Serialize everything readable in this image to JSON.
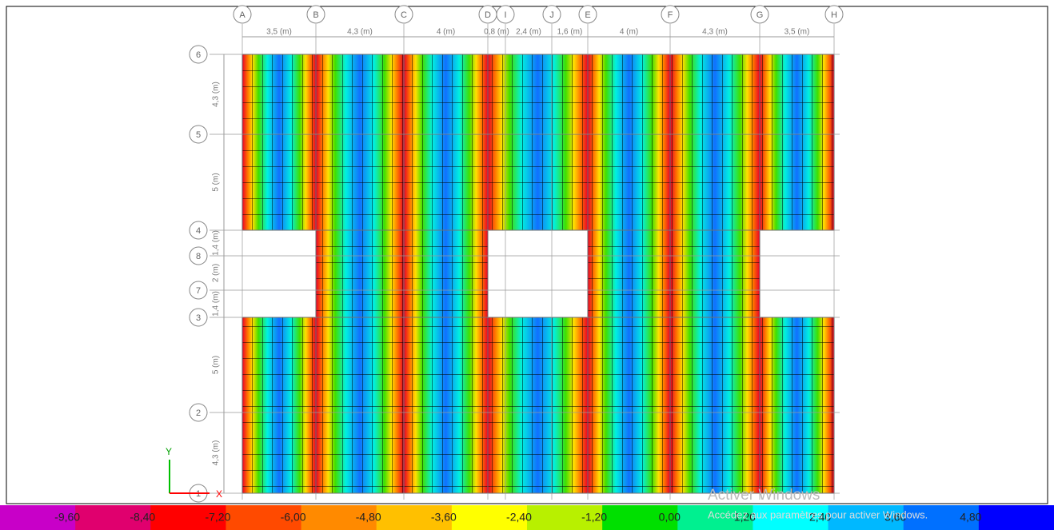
{
  "grid_columns": [
    "A",
    "B",
    "C",
    "D",
    "I",
    "J",
    "E",
    "F",
    "G",
    "H"
  ],
  "column_spacings": [
    "3,5 (m)",
    "4,3 (m)",
    "4 (m)",
    "0,8 (m)",
    "2,4 (m)",
    "1,6 (m)",
    "4 (m)",
    "4,3 (m)",
    "3,5 (m)"
  ],
  "grid_rows": [
    "6",
    "5",
    "4",
    "8",
    "7",
    "3",
    "2",
    "1"
  ],
  "row_spacings": [
    "4,3 (m)",
    "5 (m)",
    "1,4 (m)",
    "2 (m)",
    "1,4 (m)",
    "5 (m)",
    "4,3 (m)"
  ],
  "axis": {
    "y": "Y",
    "x": "X"
  },
  "legend": [
    "-9,60",
    "-8,40",
    "-7,20",
    "-6,00",
    "-4,80",
    "-3,60",
    "-2,40",
    "-1,20",
    "0,00",
    "1,20",
    "2,40",
    "3,60",
    "4,80"
  ],
  "watermark": {
    "title": "Activer Windows",
    "text": "Accédez aux paramètres pour activer Windows."
  }
}
